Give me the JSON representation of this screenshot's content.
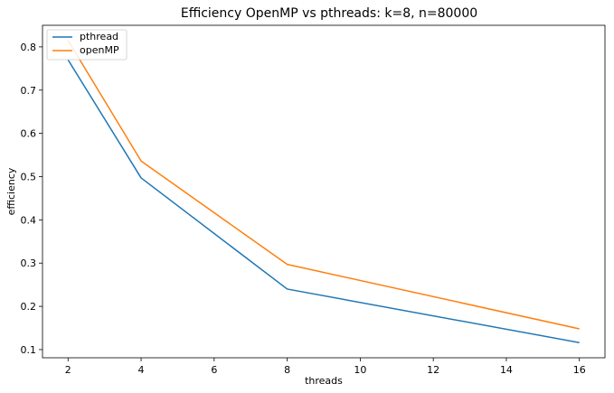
{
  "chart_data": {
    "type": "line",
    "title": "Efficiency OpenMP vs pthreads: k=8, n=80000",
    "xlabel": "threads",
    "ylabel": "efficiency",
    "x": [
      2,
      4,
      8,
      16
    ],
    "series": [
      {
        "name": "pthread",
        "color": "#1f77b4",
        "values": [
          0.77,
          0.497,
          0.24,
          0.116
        ]
      },
      {
        "name": "openMP",
        "color": "#ff7f0e",
        "values": [
          0.815,
          0.536,
          0.297,
          0.148
        ]
      }
    ],
    "xticks": [
      2,
      4,
      6,
      8,
      10,
      12,
      14,
      16
    ],
    "yticks": [
      0.1,
      0.2,
      0.3,
      0.4,
      0.5,
      0.6,
      0.7,
      0.8
    ],
    "xtick_labels": [
      "2",
      "4",
      "6",
      "8",
      "10",
      "12",
      "14",
      "16"
    ],
    "ytick_labels": [
      "0.1",
      "0.2",
      "0.3",
      "0.4",
      "0.5",
      "0.6",
      "0.7",
      "0.8"
    ],
    "xlim": [
      1.3,
      16.7
    ],
    "ylim": [
      0.0811,
      0.8499
    ],
    "grid": false,
    "legend_position": "top-left"
  }
}
